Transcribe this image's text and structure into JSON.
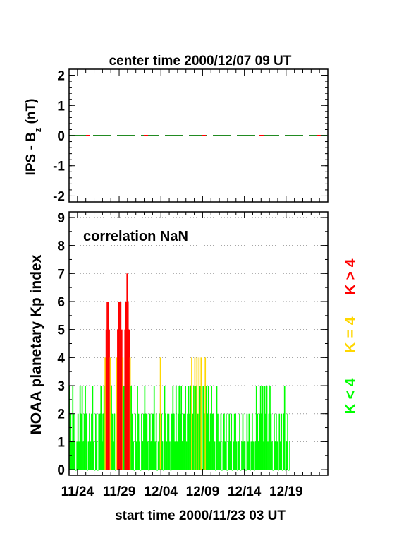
{
  "top_title": "center time 2000/12/07 09 UT",
  "bottom_xlabel": "start time 2000/11/23 03 UT",
  "top_ylabel": {
    "main": "IPS - B",
    "sub": "z",
    "unit": " (nT)"
  },
  "bottom_ylabel": "NOAA planetary Kp index",
  "annotation": "correlation NaN",
  "legend": {
    "k_gt4": {
      "label": "K > 4",
      "color": "#ff0000"
    },
    "k_eq4": {
      "label": "K = 4",
      "color": "#ffd700"
    },
    "k_lt4": {
      "label": "K < 4",
      "color": "#00ff00"
    }
  },
  "chart_data": [
    {
      "type": "line",
      "ylim": [
        -2.2,
        2.2
      ],
      "yticks": [
        {
          "value": 2,
          "label": "2"
        },
        {
          "value": 1,
          "label": "1"
        },
        {
          "value": 0,
          "label": "0"
        },
        {
          "value": -1,
          "label": "-1"
        },
        {
          "value": -2,
          "label": "-2"
        }
      ],
      "xlim": [
        0,
        31
      ],
      "series": [
        {
          "color": "#228b22",
          "style": "dashed",
          "x": [
            0,
            31
          ],
          "values": [
            0,
            0
          ]
        },
        {
          "color": "#ff0000",
          "style": "dotted",
          "x": [
            0,
            31
          ],
          "values": [
            0,
            0
          ]
        }
      ]
    },
    {
      "type": "bar",
      "ylim": [
        -0.2,
        9.2
      ],
      "xlim": [
        0,
        31
      ],
      "yticks": [
        {
          "value": 0,
          "label": "0"
        },
        {
          "value": 1,
          "label": "1"
        },
        {
          "value": 2,
          "label": "2"
        },
        {
          "value": 3,
          "label": "3"
        },
        {
          "value": 4,
          "label": "4"
        },
        {
          "value": 5,
          "label": "5"
        },
        {
          "value": 6,
          "label": "6"
        },
        {
          "value": 7,
          "label": "7"
        },
        {
          "value": 8,
          "label": "8"
        },
        {
          "value": 9,
          "label": "9"
        }
      ],
      "xticks": [
        {
          "value": 1,
          "label": "11/24"
        },
        {
          "value": 6,
          "label": "11/29"
        },
        {
          "value": 11,
          "label": "12/04"
        },
        {
          "value": 16,
          "label": "12/09"
        },
        {
          "value": 21,
          "label": "12/14"
        },
        {
          "value": 26,
          "label": "12/19"
        }
      ],
      "grid_y": true,
      "interval_days": 0.125,
      "kp": [
        3,
        2,
        1,
        3,
        2,
        1,
        0,
        1,
        2,
        1,
        3,
        2,
        3,
        1,
        2,
        3,
        2,
        0,
        1,
        2,
        1,
        2,
        3,
        1,
        0,
        2,
        1,
        0,
        2,
        2,
        3,
        1,
        2,
        3,
        4,
        5,
        6,
        6,
        5,
        4,
        3,
        2,
        1,
        2,
        0,
        4,
        5,
        6,
        6,
        6,
        5,
        4,
        3,
        5,
        6,
        7,
        6,
        5,
        4,
        3,
        2,
        1,
        0,
        2,
        1,
        3,
        2,
        1,
        0,
        2,
        1,
        2,
        3,
        2,
        2,
        1,
        0,
        2,
        1,
        2,
        2,
        3,
        1,
        2,
        0,
        1,
        2,
        4,
        2,
        1,
        0,
        3,
        2,
        1,
        2,
        2,
        1,
        0,
        2,
        3,
        2,
        1,
        3,
        1,
        2,
        3,
        2,
        3,
        1,
        2,
        2,
        3,
        1,
        2,
        3,
        2,
        3,
        4,
        2,
        3,
        4,
        3,
        4,
        2,
        4,
        3,
        4,
        0,
        3,
        2,
        4,
        3,
        2,
        3,
        1,
        2,
        3,
        2,
        2,
        1,
        0,
        3,
        2,
        1,
        1,
        2,
        0,
        1,
        2,
        1,
        2,
        0,
        1,
        2,
        1,
        2,
        0,
        1,
        2,
        2,
        1,
        0,
        1,
        2,
        0,
        1,
        2,
        1,
        1,
        0,
        2,
        1,
        2,
        0,
        1,
        2,
        1,
        0,
        1,
        3,
        2,
        1,
        2,
        3,
        2,
        3,
        1,
        3,
        2,
        3,
        1,
        2,
        3,
        2,
        1,
        0,
        2,
        1,
        2,
        1,
        0,
        2,
        1,
        2,
        0,
        2,
        3,
        0,
        1,
        2,
        0,
        1
      ]
    }
  ]
}
